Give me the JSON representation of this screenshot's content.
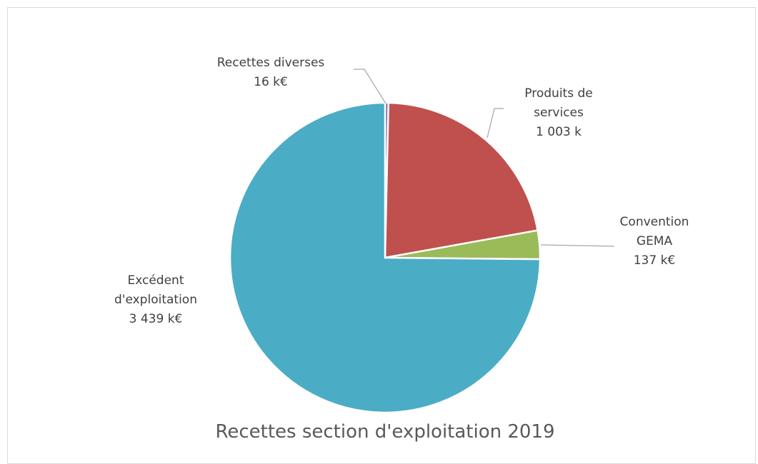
{
  "chart_data": {
    "type": "pie",
    "title": "Recettes section d'exploitation 2019",
    "categories": [
      "Recettes diverses",
      "Produits de services",
      "Convention GEMA",
      "Excédent d'exploitation"
    ],
    "values": [
      16,
      1003,
      137,
      3439
    ],
    "value_labels": [
      "16 k€",
      "1 003 k",
      "137 k€",
      "3 439 k€"
    ],
    "colors": [
      "#8064a2",
      "#c0504d",
      "#9bbb59",
      "#4bacc6"
    ]
  }
}
